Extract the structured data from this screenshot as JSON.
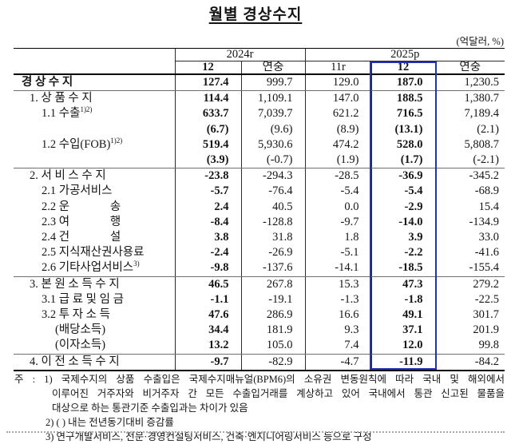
{
  "title": "월별 경상수지",
  "unit_label": "(억달러, %)",
  "table": {
    "highlight_color": "#2433ad",
    "highlighted_column": "2025p 12",
    "col_groups": [
      {
        "label": "2024r"
      },
      {
        "label": "2025p"
      }
    ],
    "col_headers": [
      "12",
      "연중",
      "11r",
      "12",
      "연중"
    ],
    "rows": [
      {
        "label": "경 상 수 지",
        "indent": 0,
        "bold": true,
        "sep": true,
        "values": [
          "127.4",
          "999.7",
          "129.0",
          "187.0",
          "1,230.5"
        ]
      },
      {
        "label": "1. 상 품 수 지",
        "indent": 1,
        "bold": false,
        "sep": false,
        "values": [
          "114.4",
          "1,109.1",
          "147.0",
          "188.5",
          "1,380.7"
        ]
      },
      {
        "label": "1.1 수출",
        "sup": "1)2)",
        "indent": 2,
        "bold": false,
        "sep": false,
        "values": [
          "633.7",
          "7,039.7",
          "621.2",
          "716.5",
          "7,189.4"
        ]
      },
      {
        "label": "",
        "indent": 2,
        "bold": false,
        "sep": false,
        "values": [
          "(6.7)",
          "(9.6)",
          "(8.9)",
          "(13.1)",
          "(2.1)"
        ]
      },
      {
        "label": "1.2 수입(FOB)",
        "sup": "1)2)",
        "indent": 2,
        "bold": false,
        "sep": false,
        "values": [
          "519.4",
          "5,930.6",
          "474.2",
          "528.0",
          "5,808.7"
        ]
      },
      {
        "label": "",
        "indent": 2,
        "bold": false,
        "sep": true,
        "values": [
          "(3.9)",
          "(-0.7)",
          "(1.9)",
          "(1.7)",
          "(-2.1)"
        ]
      },
      {
        "label": "2. 서 비 스 수 지",
        "indent": 1,
        "bold": false,
        "sep": false,
        "values": [
          "-23.8",
          "-294.3",
          "-28.5",
          "-36.9",
          "-345.2"
        ]
      },
      {
        "label": "2.1 가공서비스",
        "indent": 2,
        "bold": false,
        "sep": false,
        "values": [
          "-5.7",
          "-76.4",
          "-5.4",
          "-5.4",
          "-68.9"
        ]
      },
      {
        "label": "2.2 운              송",
        "indent": 2,
        "bold": false,
        "sep": false,
        "values": [
          "2.4",
          "40.5",
          "0.0",
          "-2.9",
          "15.4"
        ]
      },
      {
        "label": "2.3 여              행",
        "indent": 2,
        "bold": false,
        "sep": false,
        "values": [
          "-8.4",
          "-128.8",
          "-9.7",
          "-14.0",
          "-134.9"
        ]
      },
      {
        "label": "2.4 건              설",
        "indent": 2,
        "bold": false,
        "sep": false,
        "values": [
          "3.8",
          "31.8",
          "1.8",
          "3.9",
          "33.0"
        ]
      },
      {
        "label": "2.5 지식재산권사용료",
        "indent": 2,
        "bold": false,
        "sep": false,
        "values": [
          "-2.4",
          "-26.9",
          "-5.1",
          "-2.2",
          "-41.6"
        ]
      },
      {
        "label": "2.6 기타사업서비스",
        "sup": "3)",
        "indent": 2,
        "bold": false,
        "sep": true,
        "values": [
          "-9.8",
          "-137.6",
          "-14.1",
          "-18.5",
          "-155.4"
        ]
      },
      {
        "label": "3. 본 원 소 득 수 지",
        "indent": 1,
        "bold": false,
        "sep": false,
        "values": [
          "46.5",
          "267.8",
          "15.3",
          "47.3",
          "279.2"
        ]
      },
      {
        "label": "3.1 급 료 및 임 금",
        "indent": 2,
        "bold": false,
        "sep": false,
        "values": [
          "-1.1",
          "-19.1",
          "-1.3",
          "-1.8",
          "-22.5"
        ]
      },
      {
        "label": "3.2 투 자 소 득",
        "indent": 2,
        "bold": false,
        "sep": false,
        "values": [
          "47.6",
          "286.9",
          "16.6",
          "49.1",
          "301.7"
        ]
      },
      {
        "label": "(배당소득)",
        "indent": 3,
        "bold": false,
        "sep": false,
        "values": [
          "34.4",
          "181.9",
          "9.3",
          "37.1",
          "201.9"
        ]
      },
      {
        "label": "(이자소득)",
        "indent": 3,
        "bold": false,
        "sep": true,
        "values": [
          "13.2",
          "105.0",
          "7.4",
          "12.0",
          "99.8"
        ]
      },
      {
        "label": "4. 이 전 소 득 수 지",
        "indent": 1,
        "bold": false,
        "sep": false,
        "values": [
          "-9.7",
          "-82.9",
          "-4.7",
          "-11.9",
          "-84.2"
        ]
      }
    ]
  },
  "notes": [
    {
      "indent": 0,
      "justify": true,
      "text": "주 : 1) 국제수지의 상품 수출입은 국제수지매뉴얼(BPM6)의 소유권 변동원칙에 따라 국내 및 해외에서"
    },
    {
      "indent": 1,
      "justify": true,
      "text": "이루어진 거주자와 비거주자 간 모든 수출입거래를 계상하고 있어 국내에서 통관 신고된 물품을"
    },
    {
      "indent": 1,
      "justify": false,
      "text": "대상으로 하는 통관기준 수출입과는 차이가 있음"
    },
    {
      "indent": 2,
      "justify": false,
      "text": "2) (  ) 내는 전년동기대비 증감률"
    },
    {
      "indent": 2,
      "justify": false,
      "text": "3) 연구개발서비스, 전문·경영컨설팅서비스, 건축·엔지니어링서비스 등으로 구성"
    }
  ]
}
